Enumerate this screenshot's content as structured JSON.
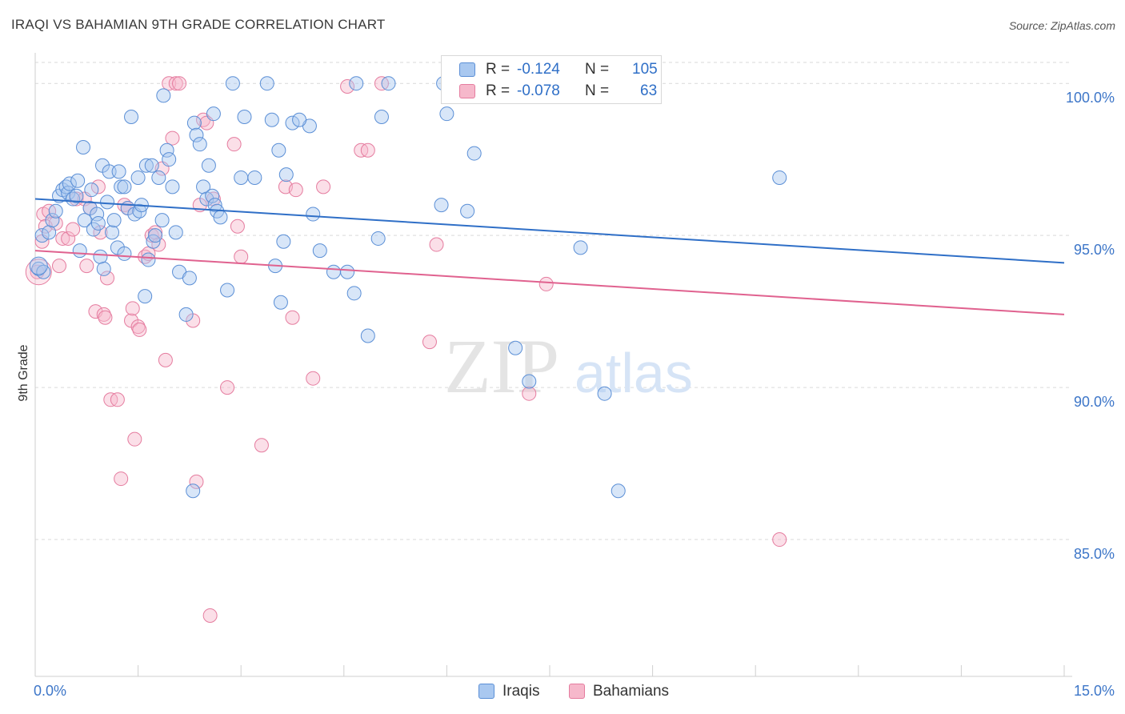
{
  "header": {
    "title": "IRAQI VS BAHAMIAN 9TH GRADE CORRELATION CHART",
    "source": "Source: ZipAtlas.com"
  },
  "legend_stats": {
    "r_label": "R =",
    "n_label": "N =",
    "iraqis": {
      "r": "-0.124",
      "n": "105"
    },
    "bahamians": {
      "r": "-0.078",
      "n": "63"
    }
  },
  "watermark": {
    "zip": "ZIP",
    "atlas": "atlas"
  },
  "colors": {
    "iraqis_fill": "#a9c8f0",
    "iraqis_stroke": "#5b8fd6",
    "iraqis_line": "#2f6fc7",
    "bahamians_fill": "#f6b8cb",
    "bahamians_stroke": "#e57c9f",
    "bahamians_line": "#e0628f",
    "tick_label": "#3d76c8",
    "grid": "#d9d9d9"
  },
  "chart_data": {
    "type": "scatter",
    "title": "IRAQI VS BAHAMIAN 9TH GRADE CORRELATION CHART",
    "xlabel": "",
    "ylabel": "9th Grade",
    "xlim": [
      0,
      15
    ],
    "ylim": [
      80.5,
      100.9
    ],
    "x_tick_labels": [
      "0.0%",
      "15.0%"
    ],
    "y_ticks": [
      85,
      90,
      95,
      100
    ],
    "y_tick_labels": [
      "85.0%",
      "90.0%",
      "95.0%",
      "100.0%"
    ],
    "grid": true,
    "legend_position": "bottom-center",
    "series": [
      {
        "name": "Iraqis",
        "trend": [
          [
            0,
            96.2
          ],
          [
            15,
            94.1
          ]
        ],
        "points": [
          [
            0.05,
            93.9
          ],
          [
            0.1,
            95
          ],
          [
            0.12,
            93.8
          ],
          [
            0.2,
            95.1
          ],
          [
            0.25,
            95.5
          ],
          [
            0.3,
            95.8
          ],
          [
            0.35,
            96.3
          ],
          [
            0.4,
            96.5
          ],
          [
            0.45,
            96.6
          ],
          [
            0.48,
            96.4
          ],
          [
            0.5,
            96.7
          ],
          [
            0.55,
            96.2
          ],
          [
            0.6,
            96.3
          ],
          [
            0.62,
            96.8
          ],
          [
            0.65,
            94.5
          ],
          [
            0.7,
            97.9
          ],
          [
            0.72,
            95.5
          ],
          [
            0.8,
            95.9
          ],
          [
            0.82,
            96.5
          ],
          [
            0.85,
            95.2
          ],
          [
            0.9,
            95.7
          ],
          [
            0.92,
            95.4
          ],
          [
            0.95,
            94.3
          ],
          [
            0.98,
            97.3
          ],
          [
            1.0,
            93.9
          ],
          [
            1.05,
            96.1
          ],
          [
            1.08,
            97.1
          ],
          [
            1.12,
            95.1
          ],
          [
            1.15,
            95.5
          ],
          [
            1.2,
            94.6
          ],
          [
            1.22,
            97.1
          ],
          [
            1.25,
            96.6
          ],
          [
            1.3,
            94.4
          ],
          [
            1.35,
            95.9
          ],
          [
            1.4,
            98.9
          ],
          [
            1.45,
            95.7
          ],
          [
            1.5,
            96.9
          ],
          [
            1.52,
            95.8
          ],
          [
            1.55,
            96
          ],
          [
            1.6,
            93
          ],
          [
            1.62,
            97.3
          ],
          [
            1.65,
            94.2
          ],
          [
            1.7,
            97.3
          ],
          [
            1.72,
            94.8
          ],
          [
            1.75,
            95
          ],
          [
            1.8,
            96.9
          ],
          [
            1.85,
            95.5
          ],
          [
            1.87,
            99.6
          ],
          [
            1.92,
            97.8
          ],
          [
            1.95,
            97.5
          ],
          [
            2.0,
            96.6
          ],
          [
            2.05,
            95.1
          ],
          [
            2.1,
            93.8
          ],
          [
            2.2,
            92.4
          ],
          [
            2.25,
            93.6
          ],
          [
            2.3,
            86.6
          ],
          [
            2.32,
            98.7
          ],
          [
            2.35,
            98.3
          ],
          [
            2.4,
            98
          ],
          [
            2.45,
            96.6
          ],
          [
            2.5,
            96.2
          ],
          [
            2.53,
            97.3
          ],
          [
            2.58,
            96.3
          ],
          [
            2.6,
            99
          ],
          [
            2.62,
            96
          ],
          [
            2.65,
            95.8
          ],
          [
            2.7,
            95.6
          ],
          [
            2.8,
            93.2
          ],
          [
            2.88,
            100
          ],
          [
            3.0,
            96.9
          ],
          [
            3.05,
            98.9
          ],
          [
            3.2,
            96.9
          ],
          [
            3.38,
            100
          ],
          [
            3.45,
            98.8
          ],
          [
            3.5,
            94
          ],
          [
            3.55,
            97.8
          ],
          [
            3.58,
            92.8
          ],
          [
            3.62,
            94.8
          ],
          [
            3.66,
            97
          ],
          [
            3.75,
            98.7
          ],
          [
            4.0,
            98.6
          ],
          [
            4.05,
            95.7
          ],
          [
            4.15,
            94.5
          ],
          [
            4.35,
            93.8
          ],
          [
            4.55,
            93.8
          ],
          [
            4.65,
            93.1
          ],
          [
            4.68,
            100
          ],
          [
            4.85,
            91.7
          ],
          [
            5.0,
            94.9
          ],
          [
            5.05,
            98.9
          ],
          [
            5.15,
            100
          ],
          [
            5.92,
            96
          ],
          [
            5.95,
            100
          ],
          [
            6.0,
            99
          ],
          [
            6.3,
            95.8
          ],
          [
            6.4,
            97.7
          ],
          [
            7.0,
            91.3
          ],
          [
            7.2,
            90.2
          ],
          [
            7.95,
            94.6
          ],
          [
            8.3,
            89.8
          ],
          [
            8.5,
            86.6
          ],
          [
            10.85,
            96.9
          ],
          [
            6.9,
            100
          ],
          [
            3.85,
            98.8
          ],
          [
            1.3,
            96.6
          ]
        ]
      },
      {
        "name": "Bahamians",
        "trend": [
          [
            0,
            94.5
          ],
          [
            15,
            92.4
          ]
        ],
        "points": [
          [
            0.03,
            93.8
          ],
          [
            0.1,
            94.8
          ],
          [
            0.12,
            95.7
          ],
          [
            0.15,
            95.3
          ],
          [
            0.2,
            95.8
          ],
          [
            0.3,
            95.4
          ],
          [
            0.35,
            94
          ],
          [
            0.4,
            94.9
          ],
          [
            0.48,
            94.9
          ],
          [
            0.55,
            95.2
          ],
          [
            0.6,
            96.2
          ],
          [
            0.72,
            96.2
          ],
          [
            0.75,
            94
          ],
          [
            0.8,
            95.9
          ],
          [
            0.88,
            92.5
          ],
          [
            0.92,
            96.6
          ],
          [
            0.95,
            95.1
          ],
          [
            1.0,
            92.4
          ],
          [
            1.02,
            92.3
          ],
          [
            1.05,
            93.6
          ],
          [
            1.1,
            89.6
          ],
          [
            1.2,
            89.6
          ],
          [
            1.25,
            87
          ],
          [
            1.3,
            96
          ],
          [
            1.35,
            95.9
          ],
          [
            1.4,
            92.2
          ],
          [
            1.42,
            92.6
          ],
          [
            1.45,
            88.3
          ],
          [
            1.5,
            92
          ],
          [
            1.52,
            91.9
          ],
          [
            1.6,
            94.3
          ],
          [
            1.65,
            94.4
          ],
          [
            1.7,
            95
          ],
          [
            1.75,
            95.1
          ],
          [
            1.8,
            94.7
          ],
          [
            1.85,
            97.2
          ],
          [
            1.9,
            90.9
          ],
          [
            1.95,
            100
          ],
          [
            2.0,
            98.2
          ],
          [
            2.05,
            100
          ],
          [
            2.1,
            100
          ],
          [
            2.3,
            92.2
          ],
          [
            2.35,
            86.9
          ],
          [
            2.4,
            96
          ],
          [
            2.45,
            98.8
          ],
          [
            2.5,
            98.7
          ],
          [
            2.55,
            82.5
          ],
          [
            2.6,
            96.2
          ],
          [
            2.8,
            90
          ],
          [
            2.9,
            98
          ],
          [
            2.95,
            95.3
          ],
          [
            3.0,
            94.3
          ],
          [
            3.3,
            88.1
          ],
          [
            3.65,
            96.6
          ],
          [
            3.75,
            92.3
          ],
          [
            3.8,
            96.5
          ],
          [
            4.05,
            90.3
          ],
          [
            4.2,
            96.6
          ],
          [
            4.55,
            99.9
          ],
          [
            4.75,
            97.8
          ],
          [
            4.85,
            97.8
          ],
          [
            5.05,
            100
          ],
          [
            5.75,
            91.5
          ]
        ]
      }
    ],
    "extra_points_bahamians": [
      [
        5.85,
        94.7
      ],
      [
        7.2,
        89.8
      ],
      [
        7.45,
        93.4
      ],
      [
        10.85,
        85
      ]
    ]
  },
  "legend_bottom": {
    "iraqis": "Iraqis",
    "bahamians": "Bahamians"
  }
}
